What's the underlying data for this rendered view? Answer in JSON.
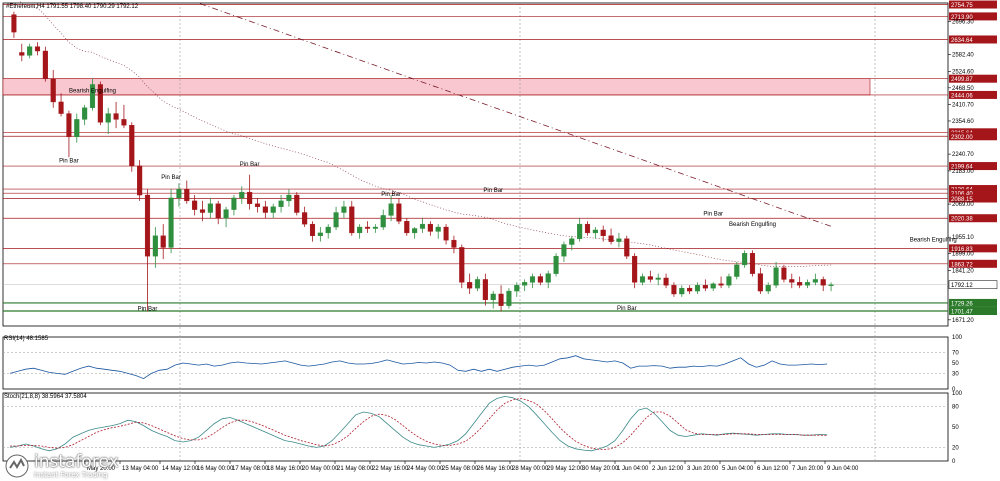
{
  "chart_data": {
    "type": "candlestick",
    "instrument_label": "#Ethereum,H4",
    "ohlc_label": "1791.55 1798.40 1790.29 1792.12",
    "price_axis": {
      "range": [
        1650,
        2760
      ],
      "ticks": [
        2696.3,
        2582.4,
        2524.6,
        2468.5,
        2410.7,
        2354.6,
        2240.7,
        2183.0,
        2069.0,
        1955.1,
        1899.0,
        1841.2,
        1671.2
      ]
    },
    "level_lines": [
      {
        "price": 2754.75,
        "label": "2754.75"
      },
      {
        "price": 2713.9,
        "label": "2713.90"
      },
      {
        "price": 2634.64,
        "label": "2634.64"
      },
      {
        "price": 2499.87,
        "label": "2499.87"
      },
      {
        "price": 2444.06,
        "label": "2444.06"
      },
      {
        "price": 2315.64,
        "label": "2315.64"
      },
      {
        "price": 2302.0,
        "label": "2302.00"
      },
      {
        "price": 2199.64,
        "label": "2199.64"
      },
      {
        "price": 2120.64,
        "label": "2120.64"
      },
      {
        "price": 2106.4,
        "label": "2106.40"
      },
      {
        "price": 2088.15,
        "label": "2088.15"
      },
      {
        "price": 2020.38,
        "label": "2020.38"
      },
      {
        "price": 1916.83,
        "label": "1916.83"
      },
      {
        "price": 1863.72,
        "label": "1863.72"
      }
    ],
    "green_lines": [
      {
        "price": 1729.26,
        "label": "1729.26"
      },
      {
        "price": 1701.47,
        "label": "1701.47"
      }
    ],
    "current_price": {
      "price": 1792.12,
      "label": "1792.12"
    },
    "zone": {
      "from": 2444.06,
      "to": 2499.87
    },
    "annotations": [
      {
        "text": "Bearish Engulfing",
        "index": 10,
        "price": 2452
      },
      {
        "text": "Pin Bar",
        "index": 7,
        "price": 2212
      },
      {
        "text": "Pin Bar",
        "index": 20,
        "price": 2156
      },
      {
        "text": "Pin Bar",
        "index": 30,
        "price": 2199
      },
      {
        "text": "Pin Bar",
        "index": 17,
        "price": 1704
      },
      {
        "text": "Pin Bar",
        "index": 48,
        "price": 2097
      },
      {
        "text": "Pin Bar",
        "index": 61,
        "price": 2110
      },
      {
        "text": "Pin Bar",
        "index": 78,
        "price": 1705
      },
      {
        "text": "Pin Bar",
        "index": 89,
        "price": 2030
      },
      {
        "text": "Bearish Engulfing",
        "index": 94,
        "price": 1994
      },
      {
        "text": "Bearish Engulfing",
        "index": 117,
        "price": 1941
      }
    ],
    "candles": [
      [
        2720,
        2730,
        2640,
        2660
      ],
      [
        2590,
        2620,
        2560,
        2580
      ],
      [
        2580,
        2620,
        2570,
        2610
      ],
      [
        2610,
        2625,
        2580,
        2595
      ],
      [
        2595,
        2610,
        2490,
        2500
      ],
      [
        2500,
        2530,
        2400,
        2420
      ],
      [
        2420,
        2450,
        2370,
        2380
      ],
      [
        2380,
        2390,
        2230,
        2300
      ],
      [
        2300,
        2380,
        2280,
        2360
      ],
      [
        2360,
        2410,
        2340,
        2400
      ],
      [
        2400,
        2500,
        2390,
        2480
      ],
      [
        2480,
        2490,
        2340,
        2350
      ],
      [
        2350,
        2400,
        2310,
        2380
      ],
      [
        2380,
        2420,
        2330,
        2360
      ],
      [
        2360,
        2410,
        2330,
        2340
      ],
      [
        2340,
        2350,
        2180,
        2200
      ],
      [
        2200,
        2220,
        2080,
        2100
      ],
      [
        2100,
        2120,
        1700,
        1890
      ],
      [
        1890,
        1990,
        1850,
        1960
      ],
      [
        1960,
        2000,
        1880,
        1920
      ],
      [
        1920,
        2120,
        1900,
        2090
      ],
      [
        2090,
        2140,
        2060,
        2120
      ],
      [
        2120,
        2150,
        2070,
        2080
      ],
      [
        2080,
        2100,
        2030,
        2050
      ],
      [
        2050,
        2080,
        2010,
        2040
      ],
      [
        2040,
        2090,
        2020,
        2070
      ],
      [
        2070,
        2080,
        2000,
        2020
      ],
      [
        2020,
        2060,
        1990,
        2050
      ],
      [
        2050,
        2100,
        2030,
        2090
      ],
      [
        2090,
        2130,
        2070,
        2110
      ],
      [
        2110,
        2170,
        2050,
        2070
      ],
      [
        2070,
        2090,
        2040,
        2060
      ],
      [
        2060,
        2080,
        2020,
        2040
      ],
      [
        2040,
        2070,
        2020,
        2060
      ],
      [
        2060,
        2100,
        2040,
        2080
      ],
      [
        2080,
        2120,
        2060,
        2100
      ],
      [
        2100,
        2110,
        2030,
        2040
      ],
      [
        2040,
        2060,
        1990,
        2000
      ],
      [
        2000,
        2010,
        1940,
        1960
      ],
      [
        1960,
        1990,
        1940,
        1970
      ],
      [
        1970,
        2000,
        1950,
        1990
      ],
      [
        1990,
        2060,
        1980,
        2040
      ],
      [
        2040,
        2080,
        2020,
        2060
      ],
      [
        2060,
        2080,
        1960,
        1970
      ],
      [
        1970,
        2000,
        1950,
        1990
      ],
      [
        1990,
        2010,
        1970,
        1985
      ],
      [
        1985,
        2000,
        1970,
        1990
      ],
      [
        1990,
        2050,
        1980,
        2030
      ],
      [
        2030,
        2100,
        2010,
        2070
      ],
      [
        2070,
        2090,
        2000,
        2010
      ],
      [
        2010,
        2020,
        1960,
        1970
      ],
      [
        1970,
        1990,
        1950,
        1985
      ],
      [
        1985,
        2020,
        1970,
        2000
      ],
      [
        2000,
        2010,
        1960,
        1975
      ],
      [
        1975,
        2000,
        1950,
        1990
      ],
      [
        1990,
        2000,
        1930,
        1945
      ],
      [
        1945,
        1960,
        1900,
        1920
      ],
      [
        1920,
        1930,
        1780,
        1800
      ],
      [
        1800,
        1830,
        1760,
        1780
      ],
      [
        1780,
        1820,
        1770,
        1810
      ],
      [
        1810,
        1830,
        1720,
        1740
      ],
      [
        1740,
        1770,
        1710,
        1760
      ],
      [
        1760,
        1790,
        1700,
        1720
      ],
      [
        1720,
        1780,
        1710,
        1770
      ],
      [
        1770,
        1800,
        1750,
        1790
      ],
      [
        1790,
        1810,
        1770,
        1800
      ],
      [
        1800,
        1830,
        1780,
        1820
      ],
      [
        1820,
        1830,
        1790,
        1800
      ],
      [
        1800,
        1840,
        1780,
        1830
      ],
      [
        1830,
        1900,
        1820,
        1890
      ],
      [
        1890,
        1940,
        1870,
        1930
      ],
      [
        1930,
        1960,
        1910,
        1950
      ],
      [
        1950,
        2020,
        1940,
        2000
      ],
      [
        2000,
        2010,
        1960,
        1970
      ],
      [
        1970,
        1990,
        1950,
        1980
      ],
      [
        1980,
        1995,
        1940,
        1960
      ],
      [
        1960,
        1985,
        1930,
        1940
      ],
      [
        1940,
        1970,
        1920,
        1950
      ],
      [
        1950,
        1960,
        1880,
        1890
      ],
      [
        1890,
        1900,
        1780,
        1800
      ],
      [
        1800,
        1830,
        1790,
        1820
      ],
      [
        1820,
        1840,
        1800,
        1810
      ],
      [
        1810,
        1830,
        1790,
        1815
      ],
      [
        1815,
        1830,
        1780,
        1790
      ],
      [
        1790,
        1800,
        1750,
        1760
      ],
      [
        1760,
        1790,
        1750,
        1780
      ],
      [
        1780,
        1790,
        1760,
        1770
      ],
      [
        1770,
        1800,
        1760,
        1790
      ],
      [
        1790,
        1810,
        1770,
        1780
      ],
      [
        1780,
        1800,
        1770,
        1795
      ],
      [
        1795,
        1820,
        1780,
        1790
      ],
      [
        1790,
        1830,
        1780,
        1820
      ],
      [
        1820,
        1870,
        1810,
        1860
      ],
      [
        1860,
        1910,
        1850,
        1900
      ],
      [
        1900,
        1910,
        1820,
        1830
      ],
      [
        1830,
        1850,
        1760,
        1770
      ],
      [
        1770,
        1800,
        1760,
        1790
      ],
      [
        1790,
        1870,
        1780,
        1850
      ],
      [
        1850,
        1860,
        1800,
        1810
      ],
      [
        1810,
        1830,
        1780,
        1800
      ],
      [
        1800,
        1820,
        1780,
        1790
      ],
      [
        1790,
        1810,
        1780,
        1800
      ],
      [
        1800,
        1830,
        1790,
        1810
      ],
      [
        1810,
        1820,
        1770,
        1790
      ],
      [
        1790,
        1800,
        1770,
        1792
      ]
    ],
    "time_labels": [
      {
        "text": "May 20:00",
        "index": 15
      },
      {
        "text": "13 May 04:00",
        "index": 22
      },
      {
        "text": "14 May 12:00",
        "index": 30
      },
      {
        "text": "16 May 00:00",
        "index": 37
      },
      {
        "text": "17 May 08:00",
        "index": 44
      },
      {
        "text": "18 May 16:00",
        "index": 51
      },
      {
        "text": "20 May 00:00",
        "index": 58
      },
      {
        "text": "21 May 08:00",
        "index": 65
      },
      {
        "text": "22 May 16:00",
        "index": 72
      },
      {
        "text": "24 May 00:00",
        "index": 79
      },
      {
        "text": "25 May 08:00",
        "index": 86
      },
      {
        "text": "26 May 16:00",
        "index": 93
      },
      {
        "text": "28 May 00:00",
        "index": 100
      },
      {
        "text": "29 May 12:00",
        "index": 107
      },
      {
        "text": "30 May 20:00",
        "index": 114
      },
      {
        "text": "1 Jun 04:00",
        "index": 121
      },
      {
        "text": "2 Jun 12:00",
        "index": 128
      },
      {
        "text": "3 Jun 20:00",
        "index": 135
      },
      {
        "text": "5 Jun 04:00",
        "index": 142
      },
      {
        "text": "6 Jun 12:00",
        "index": 149
      },
      {
        "text": "7 Jun 20:00",
        "index": 156
      },
      {
        "text": "9 Jun 04:00",
        "index": 163
      }
    ],
    "rsi": {
      "label": "RSI(14) 48.1585",
      "ticks": [
        100,
        70,
        50,
        30,
        0
      ],
      "values": [
        30,
        34,
        38,
        40,
        36,
        32,
        30,
        28,
        34,
        40,
        44,
        40,
        38,
        36,
        34,
        30,
        26,
        20,
        30,
        36,
        38,
        46,
        50,
        48,
        46,
        48,
        44,
        46,
        50,
        52,
        50,
        49,
        48,
        50,
        52,
        54,
        50,
        46,
        44,
        46,
        48,
        52,
        54,
        50,
        48,
        48,
        49,
        52,
        56,
        52,
        48,
        49,
        51,
        50,
        52,
        50,
        46,
        36,
        34,
        38,
        34,
        38,
        34,
        38,
        42,
        44,
        46,
        44,
        46,
        52,
        58,
        60,
        64,
        58,
        56,
        54,
        52,
        54,
        50,
        40,
        44,
        44,
        45,
        44,
        40,
        42,
        42,
        44,
        43,
        45,
        44,
        48,
        54,
        60,
        48,
        42,
        46,
        54,
        48,
        46,
        46,
        47,
        48,
        47,
        48
      ],
      "color": "#1a56a0"
    },
    "stoch": {
      "label": "Stoch(21,8,8) 38.5964 37.5804",
      "ticks": [
        100,
        80,
        50,
        20,
        0
      ],
      "k": [
        20,
        22,
        25,
        22,
        18,
        15,
        18,
        25,
        35,
        40,
        45,
        48,
        50,
        52,
        55,
        60,
        58,
        52,
        45,
        40,
        36,
        30,
        28,
        30,
        35,
        45,
        55,
        62,
        64,
        60,
        55,
        50,
        45,
        40,
        35,
        30,
        28,
        25,
        22,
        20,
        22,
        30,
        42,
        55,
        68,
        72,
        70,
        65,
        55,
        45,
        35,
        28,
        24,
        22,
        20,
        22,
        25,
        30,
        40,
        55,
        70,
        85,
        92,
        95,
        93,
        88,
        80,
        68,
        55,
        42,
        30,
        22,
        18,
        16,
        15,
        18,
        22,
        30,
        45,
        62,
        75,
        78,
        70,
        58,
        45,
        38,
        36,
        38,
        40,
        39,
        38,
        40,
        41,
        40,
        39,
        38,
        39,
        40,
        40,
        39,
        39,
        38,
        38,
        39,
        38.6
      ],
      "d": [
        22,
        22,
        23,
        23,
        22,
        20,
        19,
        20,
        24,
        30,
        36,
        42,
        46,
        49,
        51,
        54,
        57,
        56,
        52,
        47,
        42,
        37,
        33,
        31,
        31,
        34,
        41,
        49,
        56,
        60,
        60,
        57,
        53,
        48,
        43,
        38,
        34,
        30,
        27,
        24,
        22,
        24,
        29,
        37,
        48,
        58,
        66,
        69,
        67,
        61,
        52,
        43,
        35,
        29,
        25,
        23,
        23,
        25,
        29,
        38,
        49,
        62,
        75,
        85,
        90,
        92,
        89,
        84,
        74,
        62,
        49,
        38,
        29,
        23,
        19,
        17,
        17,
        20,
        27,
        38,
        51,
        64,
        72,
        72,
        66,
        56,
        46,
        41,
        39,
        39,
        39,
        39,
        40,
        40,
        40,
        39,
        39,
        39,
        39,
        39,
        39,
        38,
        38,
        38,
        37.6
      ],
      "k_color": "#3c8a8a",
      "d_color": "#b01c2c"
    },
    "colors": {
      "bull": "#2f8f3f",
      "bear": "#a4161a",
      "level": "#a4161a",
      "zone": "#f9c7cf",
      "green_line": "#2a7a2a",
      "trend": "#7a1d2a"
    }
  },
  "watermark": {
    "brand": "instaforex",
    "tagline": "Instant Forex Trading"
  }
}
